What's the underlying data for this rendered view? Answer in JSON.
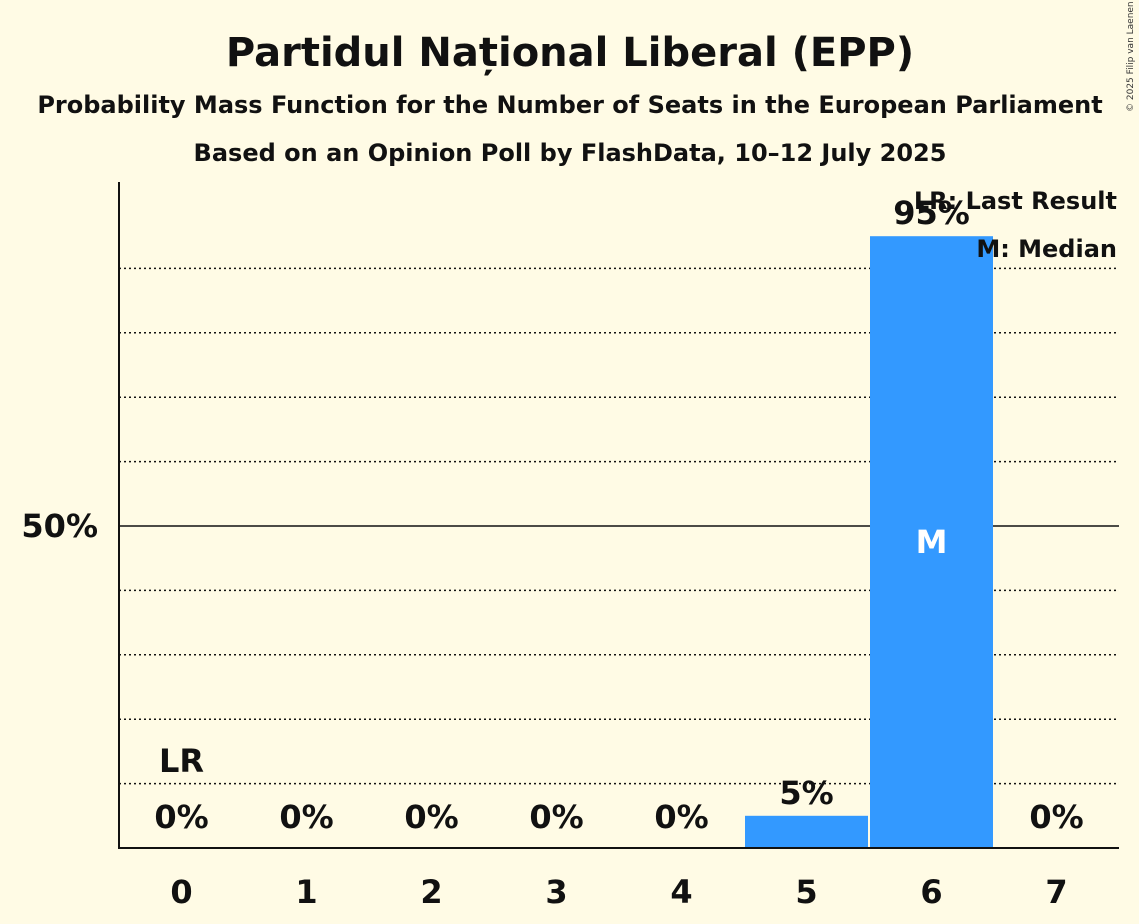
{
  "chart_data": {
    "type": "bar",
    "title": "Partidul Național Liberal (EPP)",
    "subtitle": "Probability Mass Function for the Number of Seats in the European Parliament",
    "subtitle2": "Based on an Opinion Poll by FlashData, 10–12 July 2025",
    "categories": [
      "0",
      "1",
      "2",
      "3",
      "4",
      "5",
      "6",
      "7"
    ],
    "values": [
      0,
      0,
      0,
      0,
      0,
      5,
      95,
      0
    ],
    "labels": [
      "0%",
      "0%",
      "0%",
      "0%",
      "0%",
      "5%",
      "95%",
      "0%"
    ],
    "ylim": [
      0,
      100
    ],
    "yticks": [
      {
        "value": 50,
        "label": "50%"
      }
    ],
    "gridlines": [
      10,
      20,
      30,
      40,
      60,
      70,
      80,
      90
    ],
    "bar_color": "#3399ff",
    "last_result_category": "0",
    "last_result_mark": "LR",
    "median_category": "6",
    "median_mark": "M",
    "legend": [
      "LR: Last Result",
      "M: Median"
    ],
    "legend_position": "top-right",
    "copyright": "© 2025 Filip van Laenen"
  }
}
